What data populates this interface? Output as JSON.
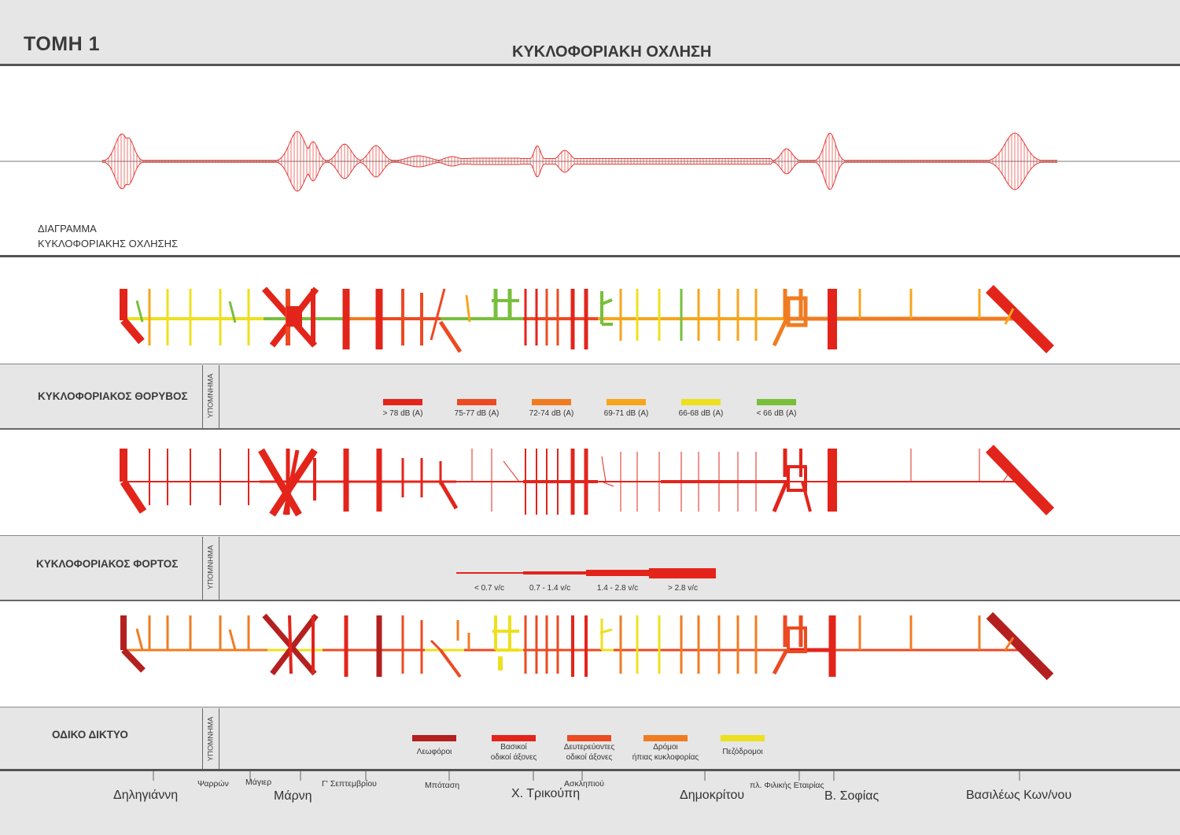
{
  "header": {
    "section_title": "ΤΟΜΗ 1",
    "main_title": "ΚΥΚΛΟΦΟΡΙΑΚΗ ΟΧΛΗΣΗ"
  },
  "diagram": {
    "label_line1": "ΔΙΑΓΡΑΜΜΑ",
    "label_line2": "ΚΥΚΛΟΦΟΡΙΑΚΗΣ ΟΧΛΗΣΗΣ",
    "color": "#e53935"
  },
  "noise": {
    "title": "ΚΥΚΛΟΦΟΡΙΑΚΟΣ ΘΟΡΥΒΟΣ",
    "legend_heading": "ΥΠΟΜΝΗΜΑ",
    "legend": [
      {
        "label": "> 78 dB (A)",
        "color": "#e3241b"
      },
      {
        "label": "75-77 dB (A)",
        "color": "#ec4a22"
      },
      {
        "label": "72-74 dB (A)",
        "color": "#f07c22"
      },
      {
        "label": "69-71 dB (A)",
        "color": "#f7a51c"
      },
      {
        "label": "66-68 dB (A)",
        "color": "#ede01e"
      },
      {
        "label": "< 66 dB (A)",
        "color": "#78bf3c"
      }
    ]
  },
  "load": {
    "title": "ΚΥΚΛΟΦΟΡΙΑΚΟΣ ΦΟΡΤΟΣ",
    "legend_heading": "ΥΠΟΜΝΗΜΑ",
    "legend": [
      {
        "label": "< 0.7 v/c"
      },
      {
        "label": "0.7 - 1.4 v/c"
      },
      {
        "label": "1.4 - 2.8 v/c"
      },
      {
        "label": "> 2.8 v/c"
      }
    ],
    "color": "#e3241b"
  },
  "network": {
    "title": "ΟΔΙΚΟ ΔΙΚΤΥΟ",
    "legend_heading": "ΥΠΟΜΝΗΜΑ",
    "legend": [
      {
        "label_line1": "Λεωφόροι",
        "label_line2": "",
        "color": "#b3201f"
      },
      {
        "label_line1": "Βασικοί",
        "label_line2": "οδικοί άξονες",
        "color": "#e3241b"
      },
      {
        "label_line1": "Δευτερεύοντες",
        "label_line2": "οδικοί άξονες",
        "color": "#ec4a22"
      },
      {
        "label_line1": "Δρόμοι",
        "label_line2": "ήπιας κυκλοφορίας",
        "color": "#f07c22"
      },
      {
        "label_line1": "Πεζόδρομοι",
        "label_line2": "",
        "color": "#ede01e"
      }
    ]
  },
  "streets": {
    "dilIgianni": "Δηληγιάννη",
    "psarron": "Ψαρρών",
    "magier": "Μάγιερ",
    "marni": "Μάρνη",
    "g_septemvriou": "Γ' Σεπτεμβρίου",
    "botasi": "Μπόταση",
    "trikoupi": "Χ. Τρικούπη",
    "asklipiou": "Ασκληπιού",
    "dimokritou": "Δημοκρίτου",
    "pl_filikis": "πλ. Φιλικής Εταιρίας",
    "v_sofias": "Β. Σοφίας",
    "vasileos": "Βασιλέως Κων/νου"
  }
}
